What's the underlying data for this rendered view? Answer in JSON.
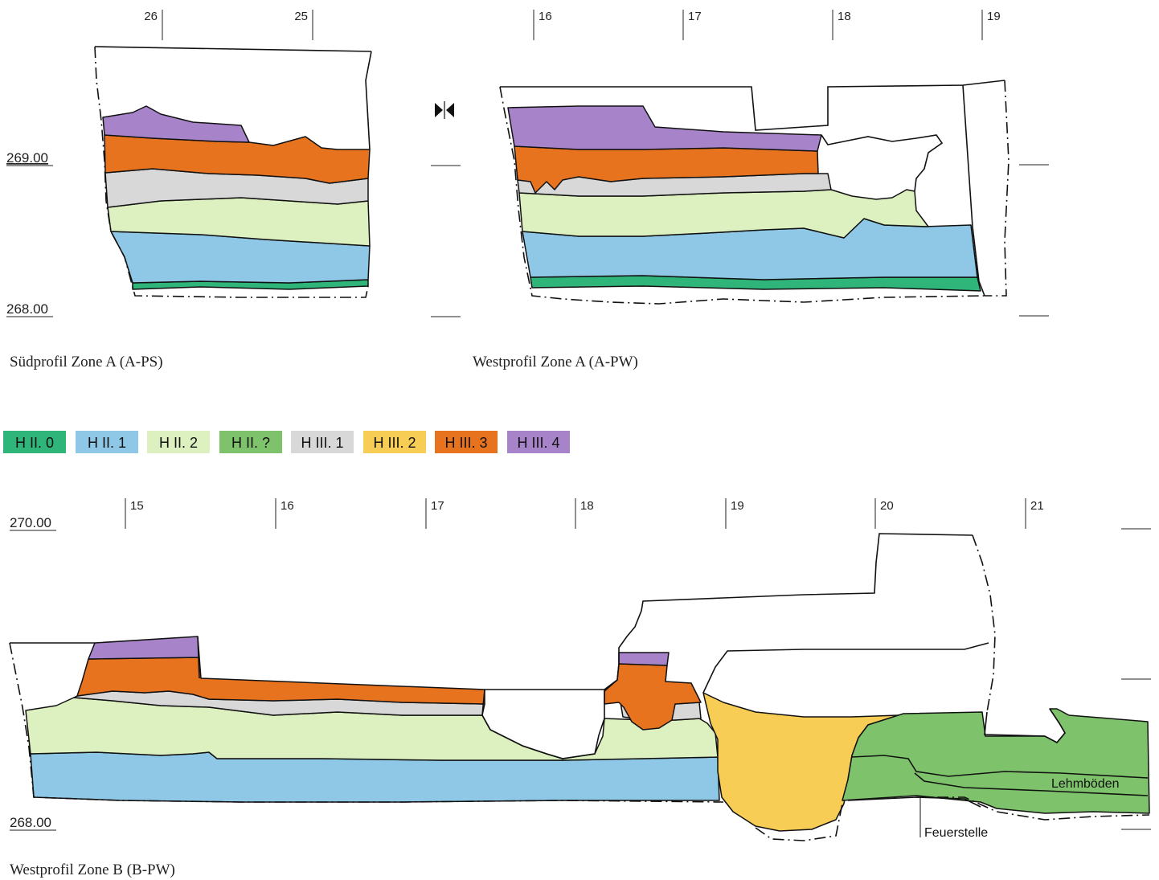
{
  "colors": {
    "h_ii_0": "#2fb57a",
    "h_ii_1": "#8ec8e6",
    "h_ii_2": "#dcf0c0",
    "h_ii_q": "#7ec36b",
    "h_iii_1": "#d8d8d8",
    "h_iii_2": "#f7cd55",
    "h_iii_3": "#e8731f",
    "h_iii_4": "#a783c9"
  },
  "legend": [
    {
      "label": "H II. 0",
      "color": "#2fb57a"
    },
    {
      "label": "H II. 1",
      "color": "#8ec8e6"
    },
    {
      "label": "H II. 2",
      "color": "#dcf0c0"
    },
    {
      "label": "H II. ?",
      "color": "#7ec36b"
    },
    {
      "label": "H III. 1",
      "color": "#d8d8d8"
    },
    {
      "label": "H III. 2",
      "color": "#f7cd55"
    },
    {
      "label": "H III. 3",
      "color": "#e8731f"
    },
    {
      "label": "H III. 4",
      "color": "#a783c9"
    }
  ],
  "profile_a_ps": {
    "caption": "Südprofil Zone A (A-PS)",
    "ticks": [
      "26",
      "25"
    ],
    "elev_top": "269.00",
    "elev_bottom": "268.00"
  },
  "profile_a_pw": {
    "caption": "Westprofil Zone A (A-PW)",
    "ticks": [
      "16",
      "17",
      "18",
      "19"
    ]
  },
  "profile_b_pw": {
    "caption": "Westprofil Zone B (B-PW)",
    "ticks": [
      "15",
      "16",
      "17",
      "18",
      "19",
      "20",
      "21"
    ],
    "elev_top": "270.00",
    "elev_bottom": "268.00",
    "label_lehmboeden": "Lehmböden",
    "label_feuerstelle": "Feuerstelle"
  }
}
